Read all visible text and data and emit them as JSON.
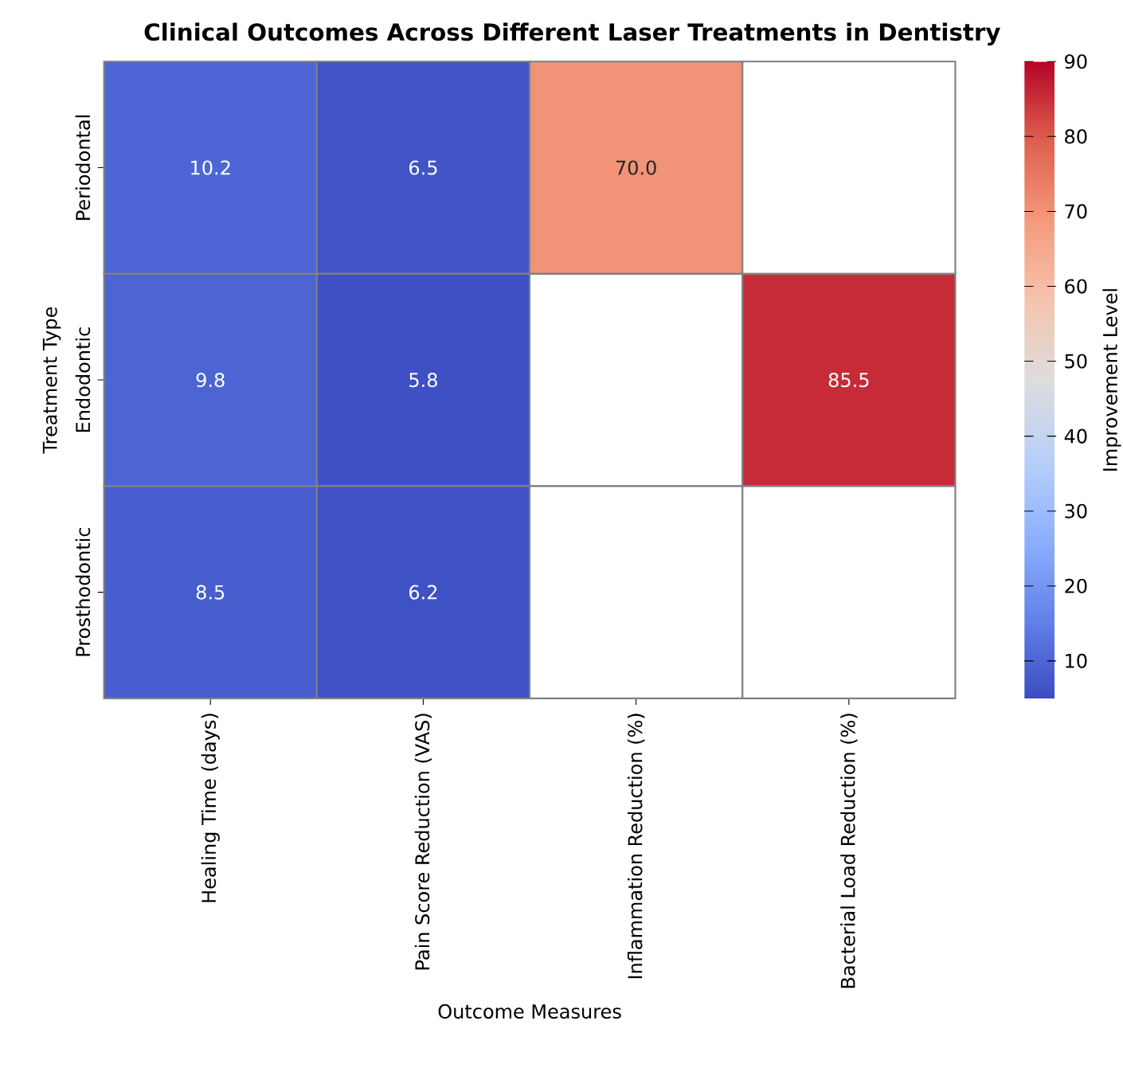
{
  "chart_data": {
    "type": "heatmap",
    "title": "Clinical Outcomes Across Different Laser Treatments in Dentistry",
    "xlabel": "Outcome Measures",
    "ylabel": "Treatment Type",
    "clabel": "Improvement Level",
    "categories": [
      "Healing Time (days)",
      "Pain Score Reduction (VAS)",
      "Inflammation Reduction (%)",
      "Bacterial Load Reduction (%)"
    ],
    "y_categories": [
      "Periodontal",
      "Endodontic",
      "Prosthodontic"
    ],
    "cells": [
      [
        10.2,
        6.5,
        70.0,
        null
      ],
      [
        9.8,
        5.8,
        null,
        85.5
      ],
      [
        8.5,
        6.2,
        null,
        null
      ]
    ],
    "cell_labels": [
      [
        "10.2",
        "6.5",
        "70.0",
        null
      ],
      [
        "9.8",
        "5.8",
        null,
        "85.5"
      ],
      [
        "8.5",
        "6.2",
        null,
        null
      ]
    ],
    "clim": [
      5,
      90
    ],
    "cticks": [
      10,
      20,
      30,
      40,
      50,
      60,
      70,
      80,
      90
    ]
  }
}
